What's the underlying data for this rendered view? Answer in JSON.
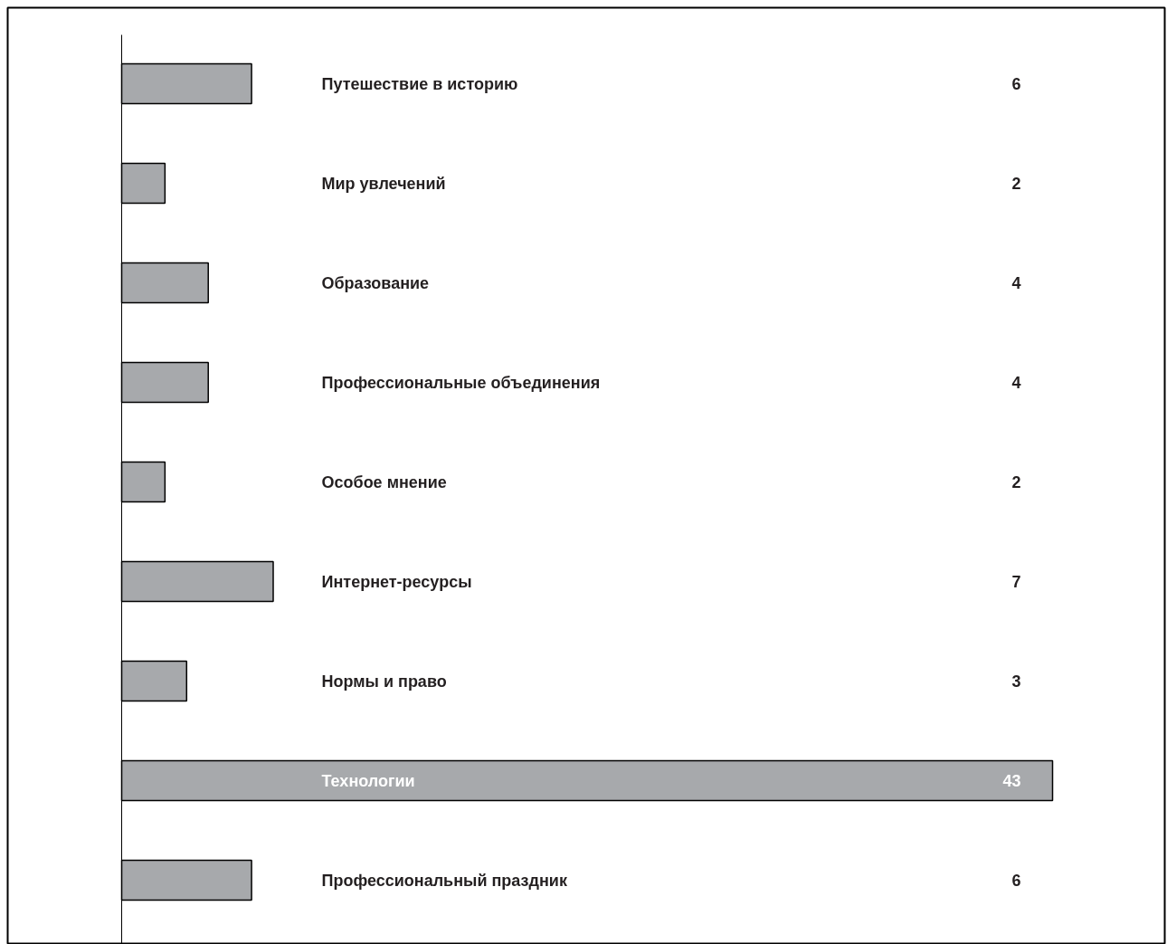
{
  "chart_data": {
    "type": "bar",
    "orientation": "horizontal",
    "categories": [
      "Путешествие в историю",
      "Мир увлечений",
      "Образование",
      "Профессиональные объединения",
      "Особое мнение",
      "Интернет-ресурсы",
      "Нормы и право",
      "Технологии",
      "Профессиональный праздник"
    ],
    "values": [
      6,
      2,
      4,
      4,
      2,
      7,
      3,
      43,
      6
    ],
    "color": "#a7a9ac",
    "data_labels": true
  }
}
